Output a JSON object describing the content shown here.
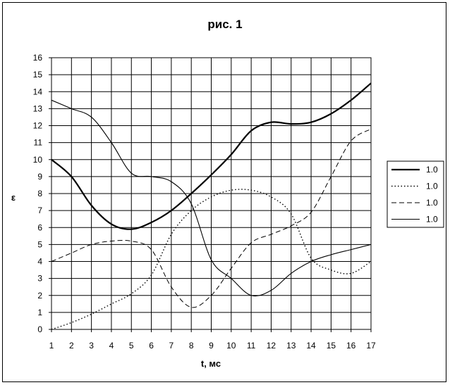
{
  "chart_data": {
    "type": "line",
    "title": "рис. 1",
    "xlabel": "t, мс",
    "ylabel": "ε",
    "x": [
      1,
      2,
      3,
      4,
      5,
      6,
      7,
      8,
      9,
      10,
      11,
      12,
      13,
      14,
      15,
      16,
      17
    ],
    "xlim": [
      1,
      17
    ],
    "ylim": [
      0,
      16
    ],
    "yticks": [
      0,
      1,
      2,
      3,
      4,
      5,
      6,
      7,
      8,
      9,
      10,
      11,
      12,
      13,
      14,
      15,
      16
    ],
    "grid": true,
    "legend_position": "right",
    "series": [
      {
        "name": "1.0",
        "style": "solid-thick",
        "values": [
          10.0,
          9.0,
          7.3,
          6.2,
          5.9,
          6.3,
          7.0,
          8.0,
          9.1,
          10.3,
          11.7,
          12.2,
          12.1,
          12.2,
          12.7,
          13.5,
          14.5
        ]
      },
      {
        "name": "1.0",
        "style": "dotted",
        "values": [
          0.0,
          0.4,
          0.9,
          1.5,
          2.1,
          3.2,
          5.6,
          7.0,
          7.8,
          8.2,
          8.2,
          7.8,
          6.8,
          4.2,
          3.5,
          3.3,
          4.0
        ]
      },
      {
        "name": "1.0",
        "style": "dashed",
        "values": [
          4.0,
          4.5,
          5.0,
          5.2,
          5.2,
          4.7,
          2.5,
          1.3,
          2.0,
          3.6,
          5.1,
          5.6,
          6.1,
          6.9,
          9.0,
          11.1,
          11.8
        ]
      },
      {
        "name": "1.0",
        "style": "solid-thin",
        "values": [
          13.5,
          13.0,
          12.5,
          11.0,
          9.2,
          9.0,
          8.7,
          7.4,
          4.1,
          3.0,
          2.0,
          2.3,
          3.3,
          4.0,
          4.4,
          4.7,
          5.0
        ]
      }
    ]
  }
}
